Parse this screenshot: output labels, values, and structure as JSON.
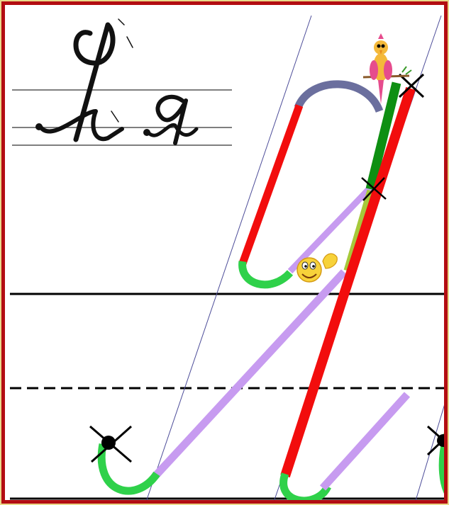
{
  "colors": {
    "frame": "#b30d12",
    "red_stroke": "#f20d0d",
    "green_stroke": "#2fd14a",
    "dark_green_stroke": "#0e8f12",
    "lilac_stroke": "#c79bf0",
    "slate_stroke": "#6b6f9e",
    "olive_stroke": "#a6c93a",
    "ruling_line": "#000000",
    "slant_line": "#4d4d99"
  },
  "illustration": {
    "letter_samples": [
      "capital-ya-cursive",
      "lowercase-ya-cursive"
    ],
    "icons": [
      "bird-icon",
      "smiley-wave-icon",
      "start-point-cross-icon"
    ]
  }
}
